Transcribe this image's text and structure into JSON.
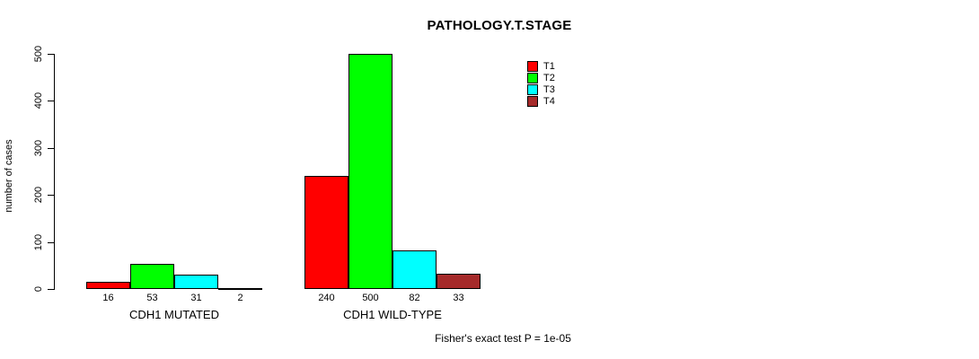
{
  "chart_data": {
    "type": "bar",
    "title": "PATHOLOGY.T.STAGE",
    "ylabel": "number of cases",
    "xlabel": "",
    "ylim": [
      0,
      500
    ],
    "yticks": [
      0,
      100,
      200,
      300,
      400,
      500
    ],
    "categories": [
      "CDH1 MUTATED",
      "CDH1 WILD-TYPE"
    ],
    "series": [
      {
        "name": "T1",
        "color": "#FF0000",
        "values": [
          16,
          240
        ]
      },
      {
        "name": "T2",
        "color": "#00FF00",
        "values": [
          53,
          500
        ]
      },
      {
        "name": "T3",
        "color": "#00FFFF",
        "values": [
          31,
          82
        ]
      },
      {
        "name": "T4",
        "color": "#A52A2A",
        "values": [
          2,
          33
        ]
      }
    ],
    "bar_value_labels": [
      [
        16,
        53,
        31,
        2
      ],
      [
        240,
        500,
        82,
        33
      ]
    ],
    "legend_position": "top-right",
    "grid": false,
    "annotation": "Fisher's exact test P = 1e-05"
  }
}
